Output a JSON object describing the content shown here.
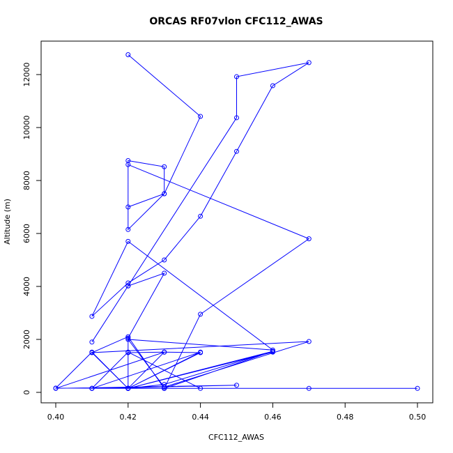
{
  "chart_data": {
    "type": "line",
    "title": "ORCAS RF07vlon CFC112_AWAS",
    "xlabel": "CFC112_AWAS",
    "ylabel": "Altitude (m)",
    "xlim": [
      0.4,
      0.5
    ],
    "ylim": [
      0,
      13000
    ],
    "xticks": [
      "0.40",
      "0.42",
      "0.44",
      "0.46",
      "0.48",
      "0.50"
    ],
    "yticks": [
      "0",
      "2000",
      "4000",
      "6000",
      "8000",
      "10000",
      "12000"
    ],
    "color": "#0000ff",
    "grid": false,
    "series": [
      {
        "x": [
          0.42,
          0.44,
          0.43,
          0.42,
          0.42,
          0.43,
          0.43,
          0.42,
          0.42,
          0.47,
          0.44,
          0.43,
          0.42,
          0.42,
          0.43,
          0.42,
          0.42,
          0.43,
          0.42,
          0.41,
          0.42,
          0.45,
          0.45,
          0.47,
          0.46,
          0.45,
          0.44,
          0.43,
          0.42,
          0.41,
          0.42,
          0.46,
          0.42,
          0.43,
          0.47,
          0.41,
          0.42,
          0.46,
          0.43,
          0.42,
          0.41,
          0.42,
          0.43,
          0.4,
          0.41,
          0.42,
          0.43,
          0.5,
          0.41,
          0.42,
          0.44,
          0.41,
          0.45,
          0.4,
          0.43,
          0.44,
          0.42,
          0.41,
          0.47,
          0.42,
          0.43,
          0.46,
          0.43,
          0.42,
          0.44,
          0.41,
          0.42,
          0.46,
          0.42,
          0.43
        ],
        "y": [
          12750,
          10420,
          7500,
          7000,
          8750,
          8520,
          7500,
          6150,
          8600,
          5800,
          2950,
          150,
          160,
          1500,
          1520,
          150,
          2050,
          4500,
          4020,
          1900,
          4020,
          10370,
          11920,
          12450,
          11580,
          9100,
          6650,
          5000,
          4130,
          2870,
          5700,
          1600,
          2000,
          200,
          1920,
          1500,
          150,
          1550,
          300,
          150,
          1500,
          2100,
          150,
          160,
          1520,
          150,
          150,
          150,
          150,
          1520,
          150,
          150,
          270,
          150,
          1520,
          1500,
          150,
          150,
          150,
          150,
          150,
          1550,
          150,
          150,
          1520,
          150,
          150,
          1520,
          150,
          1520
        ]
      }
    ]
  }
}
